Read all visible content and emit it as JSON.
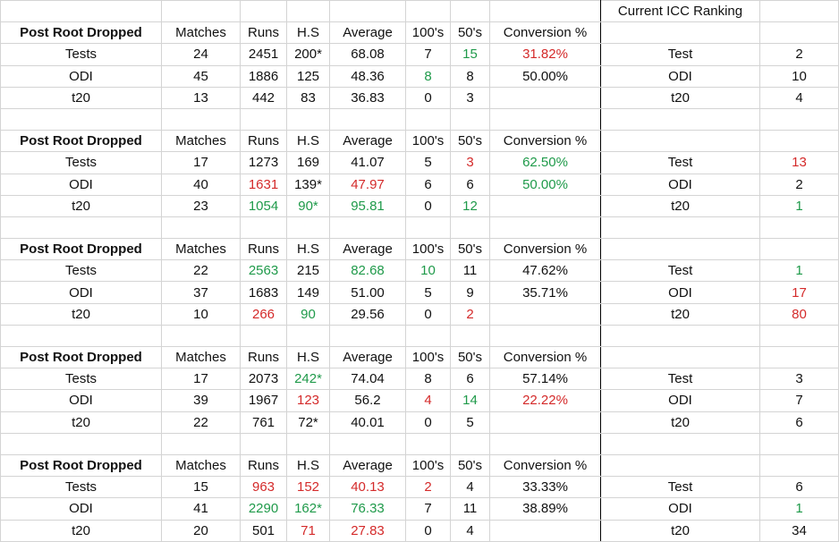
{
  "ranking_header": "Current ICC Ranking",
  "columns": [
    "Post Root Dropped",
    "Matches",
    "Runs",
    "H.S",
    "Average",
    "100's",
    "50's",
    "Conversion %"
  ],
  "colors": {
    "green": "#1f9a4a",
    "red": "#d42a2a",
    "gridline": "#d4d4d4"
  },
  "blocks": [
    {
      "rows": [
        {
          "format": "Tests",
          "matches": "24",
          "runs": "2451",
          "hs": "200*",
          "average": "68.08",
          "hundreds": "7",
          "fifties": "15",
          "conversion": "31.82%",
          "rank_format": "Test",
          "rank": "2",
          "colors": {
            "fifties": "g",
            "conversion": "r"
          }
        },
        {
          "format": "ODI",
          "matches": "45",
          "runs": "1886",
          "hs": "125",
          "average": "48.36",
          "hundreds": "8",
          "fifties": "8",
          "conversion": "50.00%",
          "rank_format": "ODI",
          "rank": "10",
          "colors": {
            "hundreds": "g"
          }
        },
        {
          "format": "t20",
          "matches": "13",
          "runs": "442",
          "hs": "83",
          "average": "36.83",
          "hundreds": "0",
          "fifties": "3",
          "conversion": "",
          "rank_format": "t20",
          "rank": "4",
          "colors": {}
        }
      ]
    },
    {
      "rows": [
        {
          "format": "Tests",
          "matches": "17",
          "runs": "1273",
          "hs": "169",
          "average": "41.07",
          "hundreds": "5",
          "fifties": "3",
          "conversion": "62.50%",
          "rank_format": "Test",
          "rank": "13",
          "colors": {
            "fifties": "r",
            "conversion": "g",
            "rank": "r"
          }
        },
        {
          "format": "ODI",
          "matches": "40",
          "runs": "1631",
          "hs": "139*",
          "average": "47.97",
          "hundreds": "6",
          "fifties": "6",
          "conversion": "50.00%",
          "rank_format": "ODI",
          "rank": "2",
          "colors": {
            "runs": "r",
            "average": "r",
            "conversion": "g"
          }
        },
        {
          "format": "t20",
          "matches": "23",
          "runs": "1054",
          "hs": "90*",
          "average": "95.81",
          "hundreds": "0",
          "fifties": "12",
          "conversion": "",
          "rank_format": "t20",
          "rank": "1",
          "colors": {
            "runs": "g",
            "hs": "g",
            "average": "g",
            "fifties": "g",
            "rank": "g"
          }
        }
      ]
    },
    {
      "rows": [
        {
          "format": "Tests",
          "matches": "22",
          "runs": "2563",
          "hs": "215",
          "average": "82.68",
          "hundreds": "10",
          "fifties": "11",
          "conversion": "47.62%",
          "rank_format": "Test",
          "rank": "1",
          "colors": {
            "runs": "g",
            "average": "g",
            "hundreds": "g",
            "rank": "g"
          }
        },
        {
          "format": "ODI",
          "matches": "37",
          "runs": "1683",
          "hs": "149",
          "average": "51.00",
          "hundreds": "5",
          "fifties": "9",
          "conversion": "35.71%",
          "rank_format": "ODI",
          "rank": "17",
          "colors": {
            "rank": "r"
          }
        },
        {
          "format": "t20",
          "matches": "10",
          "runs": "266",
          "hs": "90",
          "average": "29.56",
          "hundreds": "0",
          "fifties": "2",
          "conversion": "",
          "rank_format": "t20",
          "rank": "80",
          "colors": {
            "runs": "r",
            "hs": "g",
            "fifties": "r",
            "rank": "r"
          }
        }
      ]
    },
    {
      "rows": [
        {
          "format": "Tests",
          "matches": "17",
          "runs": "2073",
          "hs": "242*",
          "average": "74.04",
          "hundreds": "8",
          "fifties": "6",
          "conversion": "57.14%",
          "rank_format": "Test",
          "rank": "3",
          "colors": {
            "hs": "g"
          }
        },
        {
          "format": "ODI",
          "matches": "39",
          "runs": "1967",
          "hs": "123",
          "average": "56.2",
          "hundreds": "4",
          "fifties": "14",
          "conversion": "22.22%",
          "rank_format": "ODI",
          "rank": "7",
          "colors": {
            "hs": "r",
            "hundreds": "r",
            "fifties": "g",
            "conversion": "r"
          }
        },
        {
          "format": "t20",
          "matches": "22",
          "runs": "761",
          "hs": "72*",
          "average": "40.01",
          "hundreds": "0",
          "fifties": "5",
          "conversion": "",
          "rank_format": "t20",
          "rank": "6",
          "colors": {}
        }
      ]
    },
    {
      "rows": [
        {
          "format": "Tests",
          "matches": "15",
          "runs": "963",
          "hs": "152",
          "average": "40.13",
          "hundreds": "2",
          "fifties": "4",
          "conversion": "33.33%",
          "rank_format": "Test",
          "rank": "6",
          "colors": {
            "runs": "r",
            "hs": "r",
            "average": "r",
            "hundreds": "r"
          }
        },
        {
          "format": "ODI",
          "matches": "41",
          "runs": "2290",
          "hs": "162*",
          "average": "76.33",
          "hundreds": "7",
          "fifties": "11",
          "conversion": "38.89%",
          "rank_format": "ODI",
          "rank": "1",
          "colors": {
            "runs": "g",
            "hs": "g",
            "average": "g",
            "rank": "g"
          }
        },
        {
          "format": "t20",
          "matches": "20",
          "runs": "501",
          "hs": "71",
          "average": "27.83",
          "hundreds": "0",
          "fifties": "4",
          "conversion": "",
          "rank_format": "t20",
          "rank": "34",
          "colors": {
            "hs": "r",
            "average": "r"
          }
        }
      ]
    }
  ]
}
